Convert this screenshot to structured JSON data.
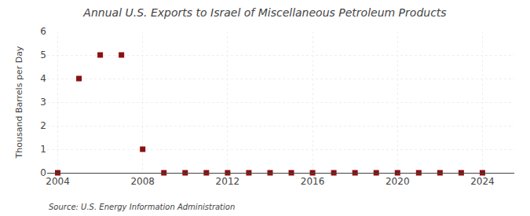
{
  "chart_data": {
    "type": "scatter",
    "title": "Annual U.S. Exports to Israel of Miscellaneous Petroleum Products",
    "y_label": "Thousand Barrels per Day",
    "annotations": [
      "Source: U.S. Energy Information Administration"
    ],
    "x": [
      2004,
      2005,
      2006,
      2007,
      2008,
      2009,
      2010,
      2011,
      2012,
      2013,
      2014,
      2015,
      2016,
      2017,
      2018,
      2019,
      2020,
      2021,
      2022,
      2023,
      2024
    ],
    "values": [
      0.0,
      4.0,
      5.0,
      5.0,
      1.0,
      0.0,
      0.0,
      0.0,
      0.0,
      0.0,
      0.0,
      0.0,
      0.0,
      0.0,
      0.0,
      0.0,
      0.0,
      0.0,
      0.0,
      0.0,
      0.0
    ],
    "color": "#8b1010",
    "marker": "square",
    "xlim": [
      2003.5,
      2025.5
    ],
    "ylim": [
      0,
      6
    ],
    "xticks": [
      2004,
      2008,
      2012,
      2016,
      2020,
      2024
    ],
    "yticks": [
      0,
      1,
      2,
      3,
      4,
      5,
      6
    ],
    "grid": true
  }
}
